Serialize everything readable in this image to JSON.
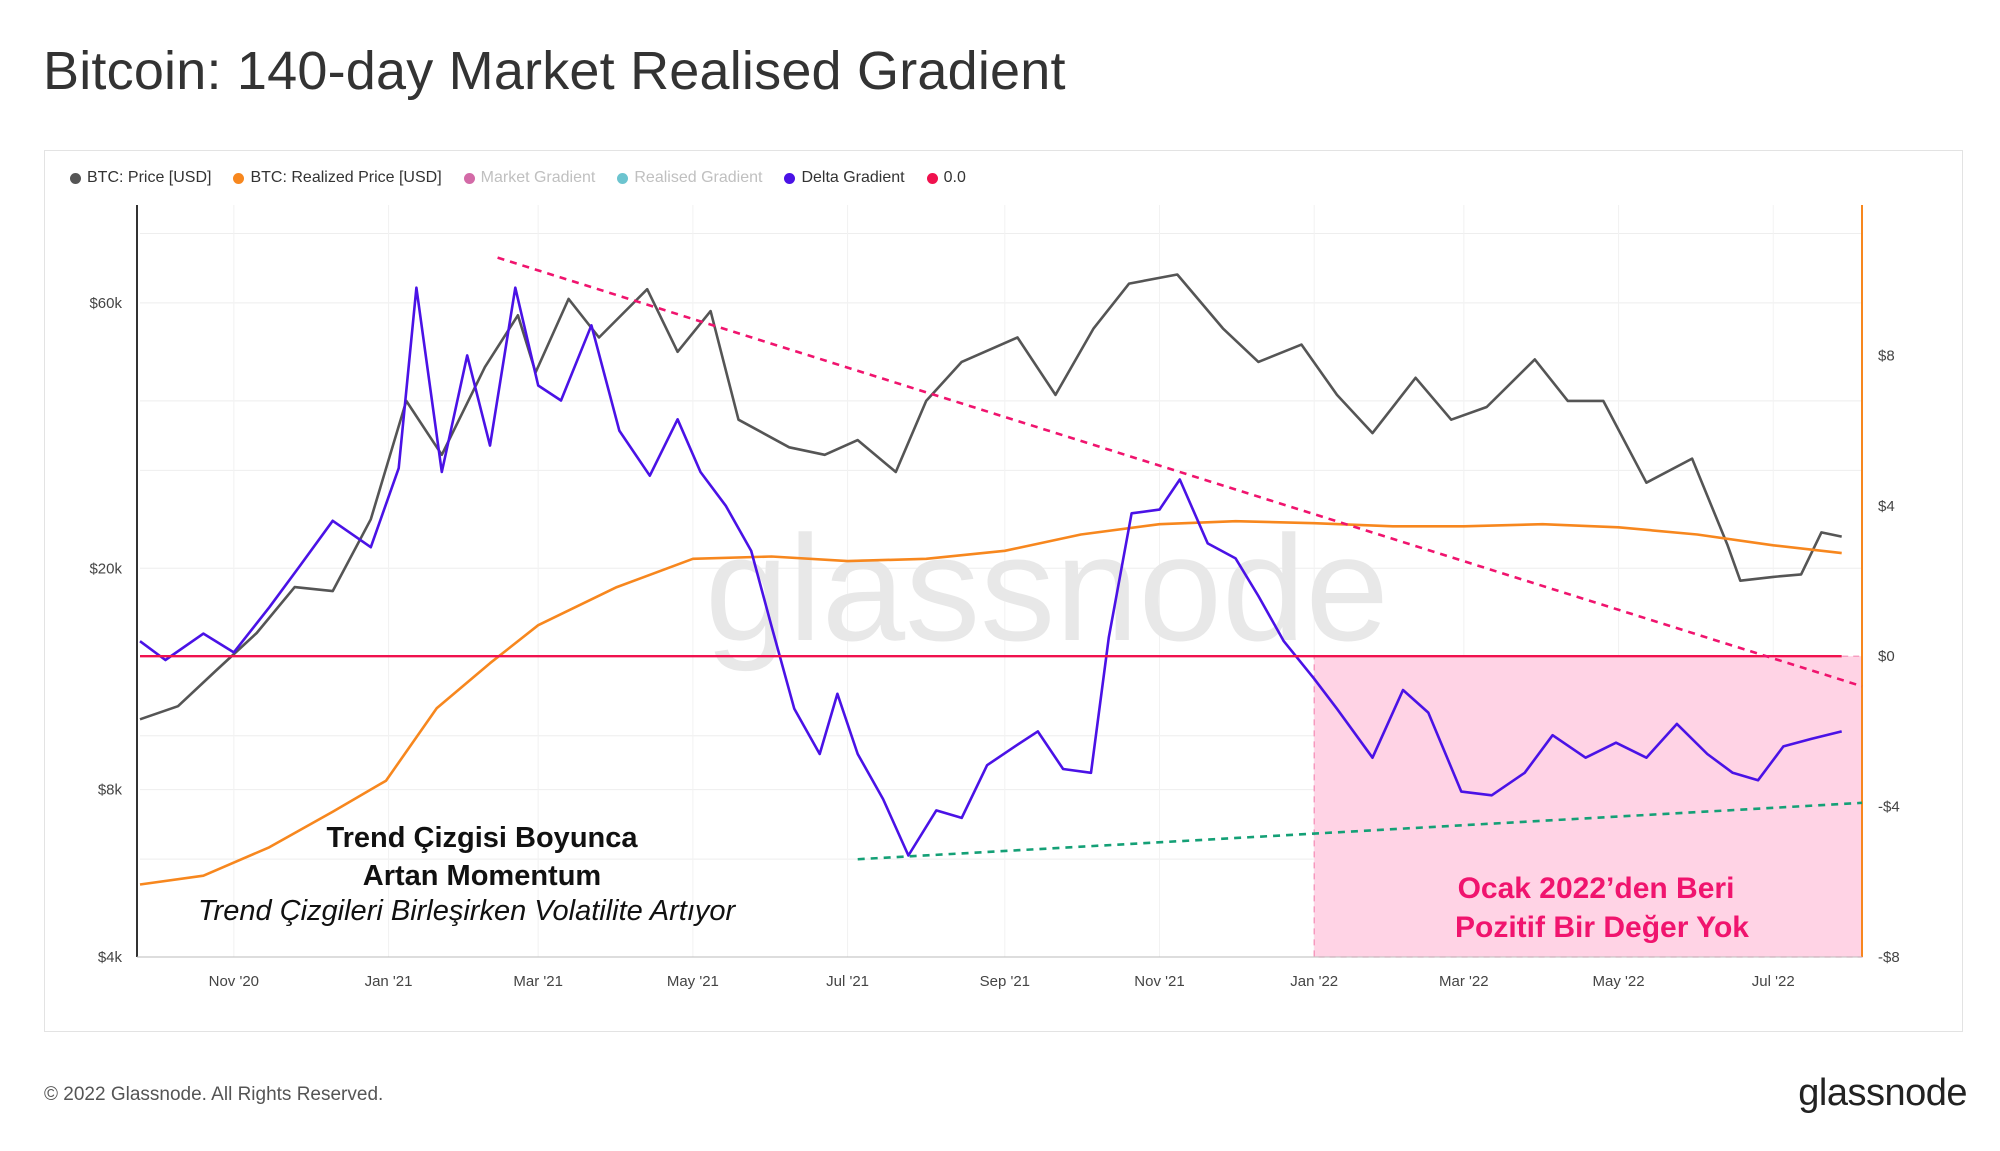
{
  "header": {
    "title": "Bitcoin: 140-day Market Realised Gradient"
  },
  "legend": [
    {
      "label": "BTC: Price [USD]",
      "color": "#555555"
    },
    {
      "label": "BTC: Realized Price [USD]",
      "color": "#f7871e"
    },
    {
      "label": "Market Gradient",
      "color": "#d36aa7",
      "muted": true
    },
    {
      "label": "Realised Gradient",
      "color": "#6cc4cf",
      "muted": true
    },
    {
      "label": "Delta Gradient",
      "color": "#4a12e6"
    },
    {
      "label": "0.0",
      "color": "#f0114e"
    }
  ],
  "footer": {
    "copyright": "© 2022 Glassnode. All Rights Reserved.",
    "brand": "glassnode"
  },
  "watermark": "glassnode",
  "annotations": {
    "left_line1": "Trend Çizgisi Boyunca",
    "left_line2": "Artan Momentum",
    "left_line3": "Trend Çizgileri Birleşirken Volatilite Artıyor",
    "right_line1": "Ocak 2022’den Beri",
    "right_line2": "Pozitif Bir Değer Yok"
  },
  "chart_data": {
    "type": "line",
    "x_range": [
      "2020-09-25",
      "2022-08-05"
    ],
    "x_ticks": [
      {
        "label": "Nov '20",
        "date": "2020-11-01"
      },
      {
        "label": "Jan '21",
        "date": "2021-01-01"
      },
      {
        "label": "Mar '21",
        "date": "2021-03-01"
      },
      {
        "label": "May '21",
        "date": "2021-05-01"
      },
      {
        "label": "Jul '21",
        "date": "2021-07-01"
      },
      {
        "label": "Sep '21",
        "date": "2021-09-01"
      },
      {
        "label": "Nov '21",
        "date": "2021-11-01"
      },
      {
        "label": "Jan '22",
        "date": "2022-01-01"
      },
      {
        "label": "Mar '22",
        "date": "2022-03-01"
      },
      {
        "label": "May '22",
        "date": "2022-05-01"
      },
      {
        "label": "Jul '22",
        "date": "2022-07-01"
      }
    ],
    "y_left": {
      "scale": "log",
      "range": [
        4000,
        90000
      ],
      "ticks": [
        {
          "label": "$4k",
          "value": 4000
        },
        {
          "label": "$8k",
          "value": 8000
        },
        {
          "label": "$20k",
          "value": 20000
        },
        {
          "label": "$60k",
          "value": 60000
        }
      ]
    },
    "y_right": {
      "scale": "linear",
      "range": [
        -8,
        12
      ],
      "ticks": [
        {
          "label": "$8",
          "value": 8
        },
        {
          "label": "$4",
          "value": 4
        },
        {
          "label": "$0",
          "value": 0
        },
        {
          "label": "-$4",
          "value": -4
        },
        {
          "label": "-$8",
          "value": -8
        }
      ]
    },
    "series": [
      {
        "name": "BTC: Price [USD]",
        "axis": "left",
        "color": "#555555",
        "points": [
          [
            "2020-09-25",
            10700
          ],
          [
            "2020-10-10",
            11300
          ],
          [
            "2020-10-25",
            13100
          ],
          [
            "2020-11-10",
            15300
          ],
          [
            "2020-11-25",
            18500
          ],
          [
            "2020-12-10",
            18200
          ],
          [
            "2020-12-25",
            24500
          ],
          [
            "2021-01-08",
            40000
          ],
          [
            "2021-01-22",
            32000
          ],
          [
            "2021-02-08",
            46000
          ],
          [
            "2021-02-21",
            57000
          ],
          [
            "2021-02-28",
            45000
          ],
          [
            "2021-03-13",
            61000
          ],
          [
            "2021-03-25",
            52000
          ],
          [
            "2021-04-13",
            63500
          ],
          [
            "2021-04-25",
            49000
          ],
          [
            "2021-05-08",
            58000
          ],
          [
            "2021-05-19",
            37000
          ],
          [
            "2021-06-08",
            33000
          ],
          [
            "2021-06-22",
            32000
          ],
          [
            "2021-07-05",
            34000
          ],
          [
            "2021-07-20",
            29800
          ],
          [
            "2021-08-01",
            40000
          ],
          [
            "2021-08-15",
            47000
          ],
          [
            "2021-09-06",
            52000
          ],
          [
            "2021-09-21",
            41000
          ],
          [
            "2021-10-06",
            54000
          ],
          [
            "2021-10-20",
            65000
          ],
          [
            "2021-11-08",
            67500
          ],
          [
            "2021-11-26",
            54000
          ],
          [
            "2021-12-10",
            47000
          ],
          [
            "2021-12-27",
            50500
          ],
          [
            "2022-01-10",
            41000
          ],
          [
            "2022-01-24",
            35000
          ],
          [
            "2022-02-10",
            44000
          ],
          [
            "2022-02-24",
            37000
          ],
          [
            "2022-03-10",
            39000
          ],
          [
            "2022-03-29",
            47500
          ],
          [
            "2022-04-11",
            40000
          ],
          [
            "2022-04-25",
            40000
          ],
          [
            "2022-05-12",
            28500
          ],
          [
            "2022-05-30",
            31500
          ],
          [
            "2022-06-13",
            22000
          ],
          [
            "2022-06-18",
            19000
          ],
          [
            "2022-07-01",
            19300
          ],
          [
            "2022-07-12",
            19500
          ],
          [
            "2022-07-20",
            23200
          ],
          [
            "2022-07-28",
            22800
          ]
        ]
      },
      {
        "name": "BTC: Realized Price [USD]",
        "axis": "left",
        "color": "#f7871e",
        "points": [
          [
            "2020-09-25",
            5400
          ],
          [
            "2020-10-20",
            5600
          ],
          [
            "2020-11-15",
            6300
          ],
          [
            "2020-12-10",
            7300
          ],
          [
            "2020-12-31",
            8300
          ],
          [
            "2021-01-20",
            11200
          ],
          [
            "2021-02-10",
            13500
          ],
          [
            "2021-03-01",
            15800
          ],
          [
            "2021-04-01",
            18500
          ],
          [
            "2021-05-01",
            20800
          ],
          [
            "2021-06-01",
            21000
          ],
          [
            "2021-07-01",
            20600
          ],
          [
            "2021-08-01",
            20800
          ],
          [
            "2021-09-01",
            21500
          ],
          [
            "2021-10-01",
            23000
          ],
          [
            "2021-11-01",
            24000
          ],
          [
            "2021-12-01",
            24300
          ],
          [
            "2022-01-01",
            24100
          ],
          [
            "2022-02-01",
            23800
          ],
          [
            "2022-03-01",
            23800
          ],
          [
            "2022-04-01",
            24000
          ],
          [
            "2022-05-01",
            23700
          ],
          [
            "2022-06-01",
            23000
          ],
          [
            "2022-07-01",
            22000
          ],
          [
            "2022-07-28",
            21300
          ]
        ]
      },
      {
        "name": "Delta Gradient",
        "axis": "right",
        "color": "#4a12e6",
        "points": [
          [
            "2020-09-25",
            0.4
          ],
          [
            "2020-10-05",
            -0.1
          ],
          [
            "2020-10-20",
            0.6
          ],
          [
            "2020-11-01",
            0.1
          ],
          [
            "2020-11-15",
            1.3
          ],
          [
            "2020-11-27",
            2.4
          ],
          [
            "2020-12-10",
            3.6
          ],
          [
            "2020-12-25",
            2.9
          ],
          [
            "2021-01-05",
            5.0
          ],
          [
            "2021-01-12",
            9.8
          ],
          [
            "2021-01-22",
            4.9
          ],
          [
            "2021-02-01",
            8.0
          ],
          [
            "2021-02-10",
            5.6
          ],
          [
            "2021-02-20",
            9.8
          ],
          [
            "2021-03-01",
            7.2
          ],
          [
            "2021-03-10",
            6.8
          ],
          [
            "2021-03-22",
            8.8
          ],
          [
            "2021-04-02",
            6.0
          ],
          [
            "2021-04-14",
            4.8
          ],
          [
            "2021-04-25",
            6.3
          ],
          [
            "2021-05-04",
            4.9
          ],
          [
            "2021-05-14",
            4.0
          ],
          [
            "2021-05-24",
            2.8
          ],
          [
            "2021-06-01",
            0.8
          ],
          [
            "2021-06-10",
            -1.4
          ],
          [
            "2021-06-20",
            -2.6
          ],
          [
            "2021-06-27",
            -1.0
          ],
          [
            "2021-07-05",
            -2.6
          ],
          [
            "2021-07-15",
            -3.8
          ],
          [
            "2021-07-25",
            -5.3
          ],
          [
            "2021-08-05",
            -4.1
          ],
          [
            "2021-08-15",
            -4.3
          ],
          [
            "2021-08-25",
            -2.9
          ],
          [
            "2021-09-05",
            -2.4
          ],
          [
            "2021-09-14",
            -2.0
          ],
          [
            "2021-09-24",
            -3.0
          ],
          [
            "2021-10-05",
            -3.1
          ],
          [
            "2021-10-12",
            0.5
          ],
          [
            "2021-10-21",
            3.8
          ],
          [
            "2021-11-01",
            3.9
          ],
          [
            "2021-11-09",
            4.7
          ],
          [
            "2021-11-20",
            3.0
          ],
          [
            "2021-12-01",
            2.6
          ],
          [
            "2021-12-10",
            1.6
          ],
          [
            "2021-12-20",
            0.4
          ],
          [
            "2022-01-01",
            -0.6
          ],
          [
            "2022-01-10",
            -1.4
          ],
          [
            "2022-01-24",
            -2.7
          ],
          [
            "2022-02-05",
            -0.9
          ],
          [
            "2022-02-15",
            -1.5
          ],
          [
            "2022-02-28",
            -3.6
          ],
          [
            "2022-03-12",
            -3.7
          ],
          [
            "2022-03-25",
            -3.1
          ],
          [
            "2022-04-05",
            -2.1
          ],
          [
            "2022-04-18",
            -2.7
          ],
          [
            "2022-04-30",
            -2.3
          ],
          [
            "2022-05-12",
            -2.7
          ],
          [
            "2022-05-24",
            -1.8
          ],
          [
            "2022-06-05",
            -2.6
          ],
          [
            "2022-06-15",
            -3.1
          ],
          [
            "2022-06-25",
            -3.3
          ],
          [
            "2022-07-05",
            -2.4
          ],
          [
            "2022-07-16",
            -2.2
          ],
          [
            "2022-07-28",
            -2.0
          ]
        ]
      },
      {
        "name": "0.0",
        "axis": "right",
        "color": "#f0114e",
        "points": [
          [
            "2020-09-25",
            0
          ],
          [
            "2022-07-28",
            0
          ]
        ]
      }
    ],
    "trend_lines": [
      {
        "style": "dashed",
        "color": "#f0146e",
        "axis": "right",
        "points": [
          [
            "2021-02-13",
            10.6
          ],
          [
            "2022-08-05",
            -0.8
          ]
        ]
      },
      {
        "style": "dashed",
        "color": "#14a076",
        "axis": "right",
        "points": [
          [
            "2021-07-05",
            -5.4
          ],
          [
            "2022-08-05",
            -3.9
          ]
        ]
      }
    ],
    "highlight_region": {
      "from": "2022-01-01",
      "to": "2022-08-05",
      "y_from": -8,
      "y_to": 0,
      "color": "#ffd3e5"
    },
    "grid": true,
    "legend_position": "top-left"
  }
}
